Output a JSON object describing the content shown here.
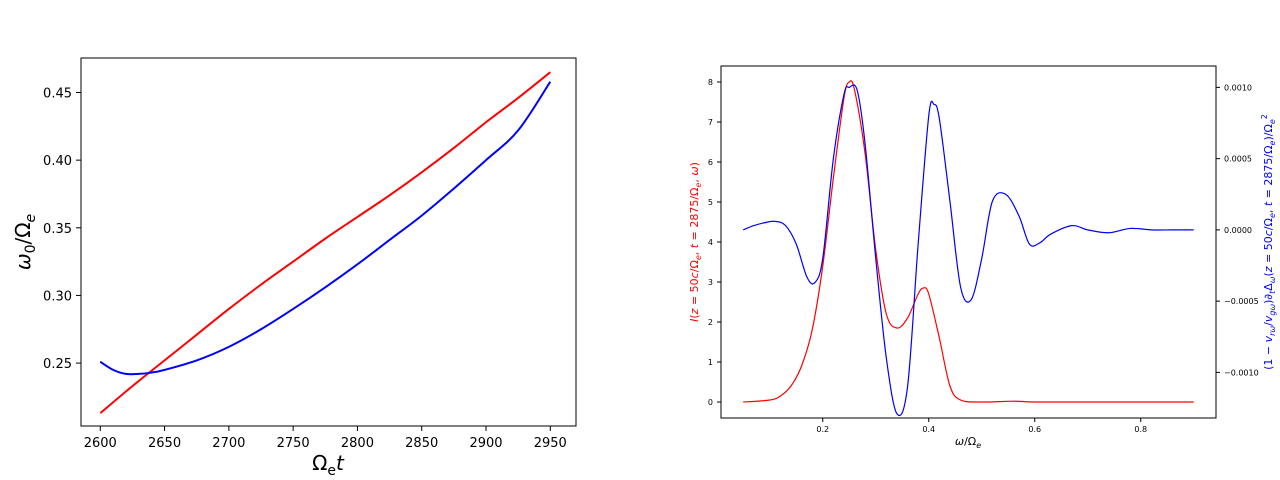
{
  "chart_data": [
    {
      "type": "line",
      "title": "",
      "xlabel": "Ω_e t",
      "ylabel": "ω_0/Ω_e",
      "xlim": [
        2585,
        2970
      ],
      "ylim": [
        0.2035,
        0.4755
      ],
      "x_ticks": [
        2600,
        2650,
        2700,
        2750,
        2800,
        2850,
        2900,
        2950
      ],
      "y_ticks": [
        0.25,
        0.3,
        0.35,
        0.4,
        0.45
      ],
      "x_tick_labels": [
        "2600",
        "2650",
        "2700",
        "2750",
        "2800",
        "2850",
        "2900",
        "2950"
      ],
      "y_tick_labels": [
        "0.25",
        "0.30",
        "0.35",
        "0.40",
        "0.45"
      ],
      "grid": false,
      "series": [
        {
          "color": "#ff0000",
          "x": [
            2600,
            2625,
            2650,
            2675,
            2700,
            2725,
            2750,
            2775,
            2800,
            2825,
            2850,
            2875,
            2900,
            2925,
            2950
          ],
          "y": [
            0.213,
            0.233,
            0.252,
            0.271,
            0.29,
            0.308,
            0.325,
            0.342,
            0.358,
            0.374,
            0.391,
            0.409,
            0.428,
            0.446,
            0.465
          ]
        },
        {
          "color": "#0000ff",
          "x": [
            2600,
            2610,
            2620,
            2630,
            2640,
            2650,
            2675,
            2700,
            2725,
            2750,
            2775,
            2800,
            2825,
            2850,
            2875,
            2900,
            2925,
            2950
          ],
          "y": [
            0.251,
            0.245,
            0.242,
            0.242,
            0.243,
            0.245,
            0.252,
            0.262,
            0.275,
            0.29,
            0.306,
            0.323,
            0.341,
            0.359,
            0.379,
            0.4,
            0.422,
            0.458
          ]
        }
      ]
    },
    {
      "type": "line",
      "title": "",
      "xlabel": "ω/Ω_e",
      "ylabel_left": "I(z = 50c/Ω_e, t = 2875/Ω_e, ω)",
      "ylabel_right": "(1 − v_rω/v_gω)∂_tΔ_ω(z = 50c/Ω_e, t = 2875/Ω_e)/Ω_e²",
      "xlim": [
        0.008,
        0.942
      ],
      "ylim_left": [
        -0.4,
        8.4
      ],
      "ylim_right": [
        -0.00132,
        0.00115
      ],
      "x_ticks": [
        0.2,
        0.4,
        0.6,
        0.8
      ],
      "x_tick_labels": [
        "0.2",
        "0.4",
        "0.6",
        "0.8"
      ],
      "y_ticks_left": [
        0,
        1,
        2,
        3,
        4,
        5,
        6,
        7,
        8
      ],
      "y_tick_labels_left": [
        "0",
        "1",
        "2",
        "3",
        "4",
        "5",
        "6",
        "7",
        "8"
      ],
      "y_ticks_right": [
        0.001,
        0.0005,
        0.0,
        -0.0005,
        -0.001
      ],
      "y_tick_labels_right": [
        "0.0010",
        "0.0005",
        "0.0000",
        "−0.0005",
        "−0.0010"
      ],
      "left_color": "#ff0000",
      "right_color": "#0000ff",
      "grid": false,
      "series": [
        {
          "axis": "left",
          "color": "#ff0000",
          "x": [
            0.05,
            0.1,
            0.12,
            0.14,
            0.16,
            0.18,
            0.2,
            0.22,
            0.24,
            0.25,
            0.26,
            0.28,
            0.3,
            0.32,
            0.34,
            0.36,
            0.38,
            0.39,
            0.4,
            0.42,
            0.44,
            0.46,
            0.5,
            0.56,
            0.6,
            0.7,
            0.8,
            0.9
          ],
          "y": [
            0.0,
            0.05,
            0.15,
            0.4,
            0.9,
            1.8,
            3.4,
            5.6,
            7.6,
            8.0,
            7.8,
            6.2,
            3.8,
            2.2,
            1.85,
            2.1,
            2.7,
            2.85,
            2.7,
            1.6,
            0.4,
            0.05,
            0.0,
            0.02,
            0.0,
            0.0,
            0.0,
            0.0
          ]
        },
        {
          "axis": "right",
          "color": "#0000ff",
          "x": [
            0.05,
            0.07,
            0.09,
            0.11,
            0.13,
            0.15,
            0.17,
            0.185,
            0.2,
            0.22,
            0.24,
            0.25,
            0.265,
            0.28,
            0.3,
            0.32,
            0.34,
            0.36,
            0.38,
            0.4,
            0.41,
            0.42,
            0.44,
            0.46,
            0.48,
            0.5,
            0.52,
            0.545,
            0.57,
            0.59,
            0.61,
            0.63,
            0.67,
            0.7,
            0.74,
            0.78,
            0.82,
            0.86,
            0.9
          ],
          "y": [
            0.0,
            3e-05,
            5e-05,
            6e-05,
            3e-05,
            -0.0001,
            -0.00033,
            -0.00037,
            -0.0002,
            0.0005,
            0.00095,
            0.001,
            0.00098,
            0.0006,
            -0.0002,
            -0.0009,
            -0.00129,
            -0.0011,
            -0.0001,
            0.0008,
            0.00088,
            0.00078,
            0.0002,
            -0.0004,
            -0.00049,
            -0.0002,
            0.0002,
            0.00025,
            0.0001,
            -0.0001,
            -9e-05,
            -3e-05,
            3e-05,
            0.0,
            -2e-05,
            1e-05,
            0.0,
            0.0,
            0.0
          ]
        }
      ]
    }
  ]
}
